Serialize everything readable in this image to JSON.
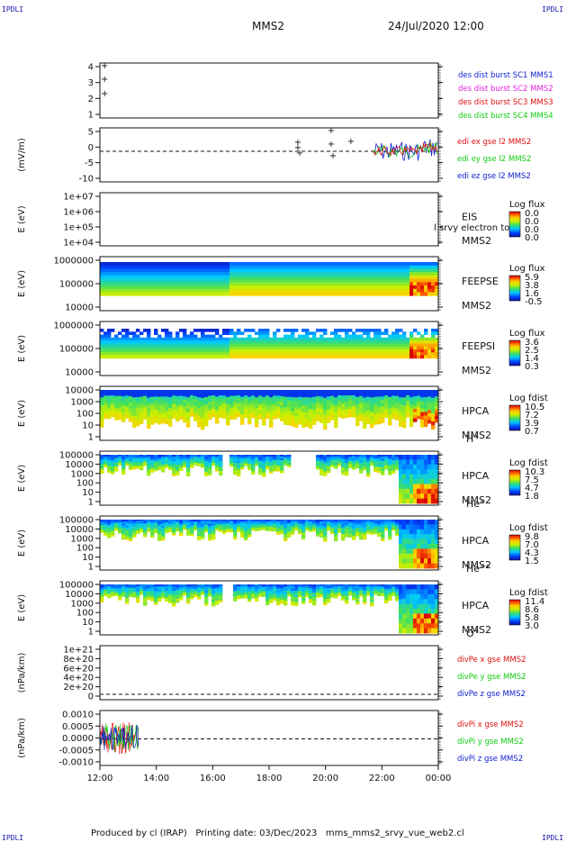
{
  "page": {
    "corner_tl": "IPDLI",
    "corner_tr": "IPDLI",
    "corner_bl": "IPDLI",
    "corner_br": "IPDLI",
    "title": "MMS2",
    "date": "24/Jul/2020 12:00",
    "footer": "Produced by cl (IRAP)   Printing date: 03/Dec/2023   mms_mms2_srvy_vue_web2.cl"
  },
  "colors": {
    "red": "#e01010",
    "green": "#10cc10",
    "blue": "#1020d0",
    "magenta": "#e020e0",
    "black": "#111111"
  },
  "chart_data": {
    "type": "line",
    "x_axis": {
      "ticks": [
        "12:00",
        "14:00",
        "16:00",
        "18:00",
        "20:00",
        "22:00",
        "00:00"
      ],
      "range": [
        "12:00",
        "00:00"
      ]
    },
    "panels": [
      {
        "id": "spacecraft-separation",
        "ylabel": "",
        "yticks": [
          "4",
          "3",
          "2",
          "1"
        ],
        "legend": [
          {
            "text": "des dist burst SC1 MMS1",
            "color": "#1020d0"
          },
          {
            "text": "des dist burst SC2 MMS2",
            "color": "#e020e0"
          },
          {
            "text": "des dist burst SC3 MMS3",
            "color": "#e01010"
          },
          {
            "text": "des dist burst SC4 MMS4",
            "color": "#10cc10"
          }
        ]
      },
      {
        "id": "electric-field",
        "ylabel": "(mV/m)",
        "yticks": [
          "5",
          "0",
          "-5",
          "-10"
        ],
        "legend": [
          {
            "text": "edi ex gse l2 MMS2",
            "color": "#e01010"
          },
          {
            "text": "edi ey gse l2 MMS2",
            "color": "#10cc10"
          },
          {
            "text": "edi ez gse l2 MMS2",
            "color": "#1020d0"
          }
        ]
      },
      {
        "id": "eis-spectrogram",
        "ylabel": "E (eV)",
        "yticks": [
          "1e+07",
          "1e+06",
          "1e+05",
          "1e+04"
        ],
        "right_labels": [
          "EIS",
          "MMS2"
        ],
        "overlay_text": "l srvy electron to",
        "cbar_title": "Log flux",
        "cbar_values": [
          "0.0",
          "0.0",
          "0.0",
          "0.0"
        ]
      },
      {
        "id": "feeps-electron",
        "ylabel": "E (eV)",
        "yticks": [
          "1000000",
          "100000",
          "10000"
        ],
        "right_labels": [
          "FEEPSE",
          "MMS2"
        ],
        "cbar_title": "Log flux",
        "cbar_values": [
          "5.9",
          "3.8",
          "1.6",
          "-0.5"
        ]
      },
      {
        "id": "feeps-ion",
        "ylabel": "E (eV)",
        "yticks": [
          "1000000",
          "100000",
          "10000"
        ],
        "right_labels": [
          "FEEPSI",
          "MMS2"
        ],
        "cbar_title": "Log flux",
        "cbar_values": [
          "3.6",
          "2.5",
          "1.4",
          "0.3"
        ]
      },
      {
        "id": "hpca-h",
        "ylabel": "E (eV)",
        "yticks": [
          "10000",
          "1000",
          "100",
          "10",
          "1"
        ],
        "right_labels": [
          "HPCA",
          "MMS2"
        ],
        "species": "H",
        "species_sup": "+",
        "cbar_title": "Log fdist",
        "cbar_values": [
          "10.5",
          "7.2",
          "3.9",
          "0.7"
        ]
      },
      {
        "id": "hpca-he",
        "ylabel": "E (eV)",
        "yticks": [
          "100000",
          "10000",
          "1000",
          "100",
          "10",
          "1"
        ],
        "right_labels": [
          "HPCA",
          "MMS2"
        ],
        "species": "He",
        "species_sup": "+",
        "cbar_title": "Log fdist",
        "cbar_values": [
          "10.3",
          "7.5",
          "4.7",
          "1.8"
        ]
      },
      {
        "id": "hpca-he2",
        "ylabel": "E (eV)",
        "yticks": [
          "100000",
          "10000",
          "1000",
          "100",
          "10",
          "1"
        ],
        "right_labels": [
          "HPCA",
          "MMS2"
        ],
        "species": "He",
        "species_sup": "++",
        "cbar_title": "Log fdist",
        "cbar_values": [
          "9.8",
          "7.0",
          "4.3",
          "1.5"
        ]
      },
      {
        "id": "hpca-o",
        "ylabel": "E (eV)",
        "yticks": [
          "100000",
          "10000",
          "1000",
          "100",
          "10",
          "1"
        ],
        "right_labels": [
          "HPCA",
          "MMS2"
        ],
        "species": "O",
        "species_sup": "+",
        "cbar_title": "Log fdist",
        "cbar_values": [
          "11.4",
          "8.6",
          "5.8",
          "3.0"
        ]
      },
      {
        "id": "div-pe",
        "ylabel": "(nPa/km)",
        "yticks": [
          "1e+21",
          "8e+20",
          "6e+20",
          "4e+20",
          "2e+20",
          "0"
        ],
        "legend": [
          {
            "text": "divPe x gse MMS2",
            "color": "#e01010"
          },
          {
            "text": "divPe y gse MMS2",
            "color": "#10cc10"
          },
          {
            "text": "divPe z gse MMS2",
            "color": "#1020d0"
          }
        ]
      },
      {
        "id": "div-pi",
        "ylabel": "(nPa/km)",
        "yticks": [
          "0.0010",
          "0.0005",
          "0.0000",
          "-0.0005",
          "-0.0010"
        ],
        "legend": [
          {
            "text": "divPi x gse MMS2",
            "color": "#e01010"
          },
          {
            "text": "divPi y gse MMS2",
            "color": "#10cc10"
          },
          {
            "text": "divPi z gse MMS2",
            "color": "#1020d0"
          }
        ]
      }
    ]
  }
}
